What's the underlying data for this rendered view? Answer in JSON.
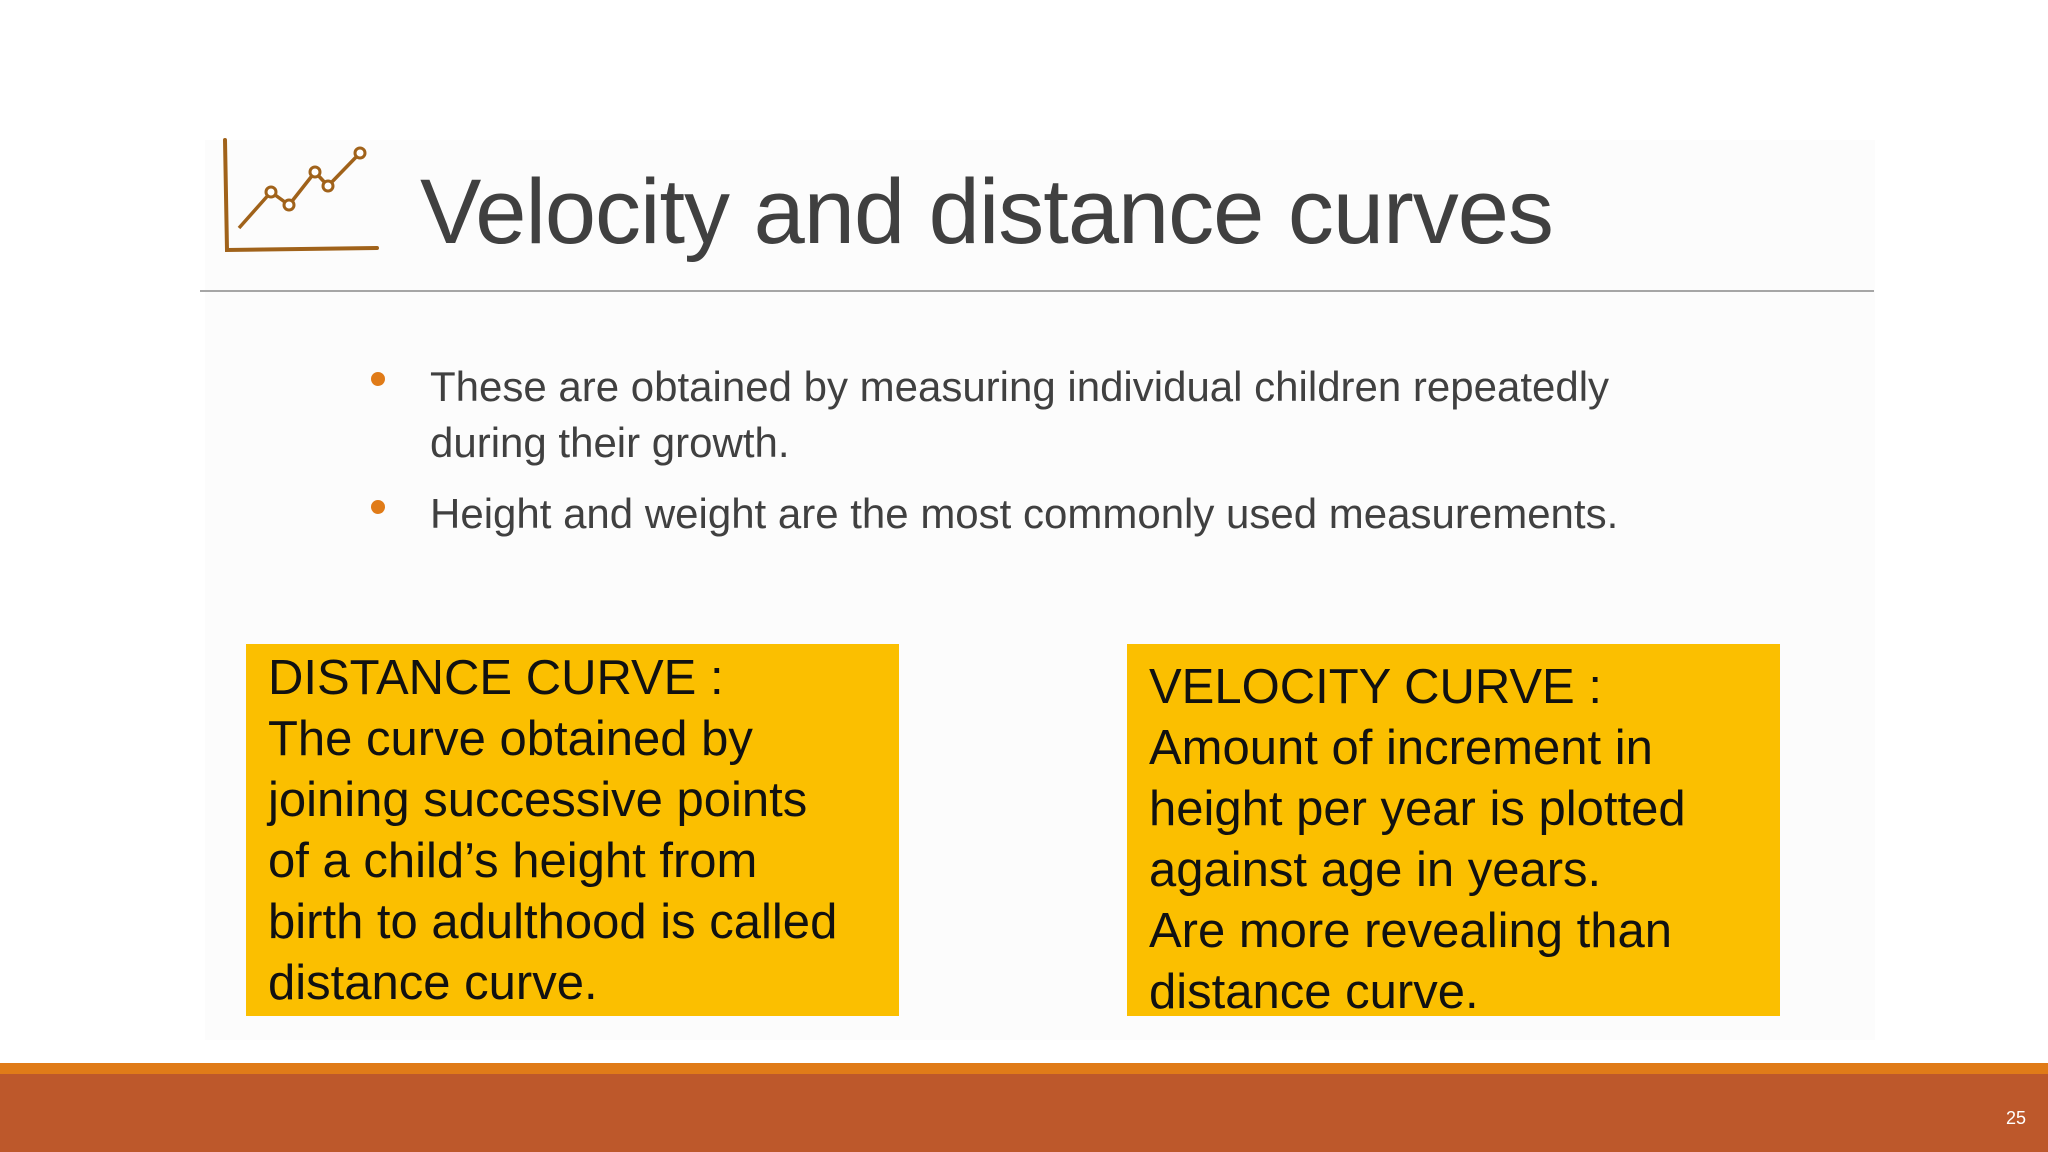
{
  "header": {
    "title": "Velocity and distance curves"
  },
  "bullets": [
    "These are obtained by measuring individual children repeatedly during their growth.",
    "Height and weight are the most commonly used measurements."
  ],
  "boxes": [
    {
      "heading": "DISTANCE CURVE :",
      "lines": [
        "The curve obtained by",
        "joining successive points",
        "of a child’s height from",
        "birth to adulthood is called",
        "distance curve."
      ]
    },
    {
      "heading": "VELOCITY CURVE :",
      "lines": [
        "Amount of increment in",
        "height per year is plotted",
        "against age in years.",
        "Are more revealing than",
        "distance curve."
      ]
    }
  ],
  "page_number": 25
}
